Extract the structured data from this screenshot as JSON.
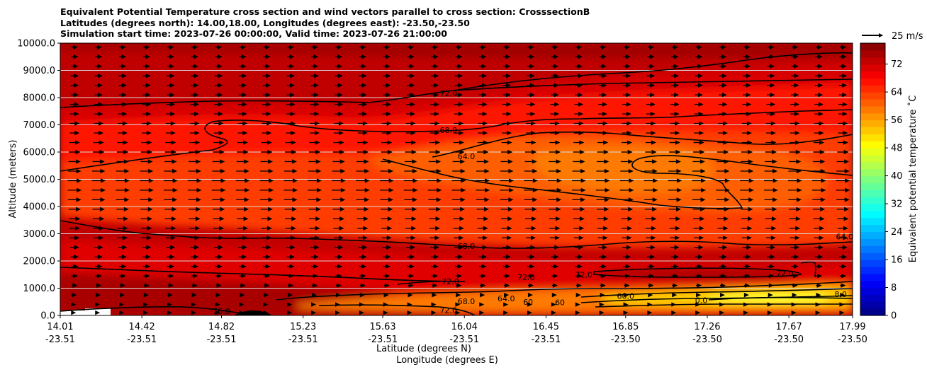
{
  "title": {
    "lines": [
      "Equivalent Potential Temperature cross section and wind vectors parallel to cross section: CrosssectionB",
      "Latitudes (degrees north): 14.00,18.00, Longitudes (degrees east): -23.50,-23.50",
      "Simulation start time: 2023-07-26 00:00:00, Valid time: 2023-07-26 21:00:00"
    ]
  },
  "quiver_key": {
    "label": "25 m/s",
    "value": 25
  },
  "colors": {
    "hot": [
      "#8b0000",
      "#a50000",
      "#c80000",
      "#e00000",
      "#ff1a00",
      "#ff3d00",
      "#ff5e00",
      "#ff7a00",
      "#ffa500",
      "#ffd000",
      "#ffff20"
    ],
    "jet_stops": [
      "#00007f",
      "#0000ff",
      "#007fff",
      "#00ffff",
      "#7fff7f",
      "#ffff00",
      "#ff7f00",
      "#ff0000",
      "#7f0000"
    ]
  },
  "chart_data": {
    "type": "heatmap",
    "variable": "Equivalent potential temperature",
    "xlabel": "Latitude (degrees N)",
    "xlabel2": "Longitude (degrees E)",
    "ylabel": "Altitude (meters)",
    "ylim": [
      0,
      10000
    ],
    "yticks": [
      "0.0",
      "1000.0",
      "2000.0",
      "3000.0",
      "4000.0",
      "5000.0",
      "6000.0",
      "7000.0",
      "8000.0",
      "9000.0",
      "10000.0"
    ],
    "ytick_values": [
      0,
      1000,
      2000,
      3000,
      4000,
      5000,
      6000,
      7000,
      8000,
      9000,
      10000
    ],
    "xlim": [
      14.01,
      17.99
    ],
    "xticks_lat": [
      "14.01",
      "14.42",
      "14.82",
      "15.23",
      "15.63",
      "16.04",
      "16.45",
      "16.85",
      "17.26",
      "17.67",
      "17.99"
    ],
    "xticks_lon": [
      "-23.51",
      "-23.51",
      "-23.51",
      "-23.51",
      "-23.51",
      "-23.51",
      "-23.51",
      "-23.50",
      "-23.50",
      "-23.50",
      "-23.50"
    ],
    "xtick_values": [
      14.01,
      14.42,
      14.82,
      15.23,
      15.63,
      16.04,
      16.45,
      16.85,
      17.26,
      17.67,
      17.99
    ],
    "colorbar": {
      "label": "Equivalent potential temperature ˚C",
      "ticks": [
        "0",
        "8",
        "16",
        "24",
        "32",
        "40",
        "48",
        "56",
        "64",
        "72"
      ],
      "tick_values": [
        0,
        8,
        16,
        24,
        32,
        40,
        48,
        56,
        64,
        72
      ],
      "range": [
        0,
        78
      ]
    },
    "contour_labels": [
      {
        "text": "72.0",
        "x": 15.96,
        "y": 8150
      },
      {
        "text": "68.0",
        "x": 15.96,
        "y": 6800
      },
      {
        "text": "64.0",
        "x": 16.05,
        "y": 5850
      },
      {
        "text": "68.0",
        "x": 16.05,
        "y": 2550
      },
      {
        "text": "72.0",
        "x": 15.97,
        "y": 1250
      },
      {
        "text": "68.0",
        "x": 16.05,
        "y": 520
      },
      {
        "text": "72.0",
        "x": 15.96,
        "y": 190
      },
      {
        "text": "76.0",
        "x": 14.82,
        "y": 150
      },
      {
        "text": "72.0",
        "x": 16.35,
        "y": 1400
      },
      {
        "text": "72.0",
        "x": 16.64,
        "y": 1500
      },
      {
        "text": "60.0",
        "x": 16.85,
        "y": 720
      },
      {
        "text": "72.0",
        "x": 17.65,
        "y": 1550
      },
      {
        "text": "64.0",
        "x": 17.95,
        "y": 2900
      },
      {
        "text": "64.0",
        "x": 16.25,
        "y": 620
      },
      {
        "text": "60",
        "x": 16.36,
        "y": 500
      },
      {
        "text": "60",
        "x": 16.52,
        "y": 480
      },
      {
        "text": "0.0",
        "x": 17.23,
        "y": 560
      },
      {
        "text": "8.0",
        "x": 17.93,
        "y": 780
      }
    ],
    "wind": {
      "columns_lat_range": [
        14.01,
        17.99
      ],
      "n_columns": 33,
      "rows_altitude": [
        9850,
        9500,
        9150,
        8800,
        8450,
        8100,
        7750,
        7400,
        7050,
        6700,
        6350,
        6000,
        5650,
        5300,
        4950,
        4600,
        4250,
        3900,
        3550,
        3200,
        2850,
        2500,
        2150,
        1800,
        1450,
        1100,
        750,
        400,
        100
      ],
      "speed_ms_by_row": [
        8,
        9,
        9,
        10,
        10,
        10,
        11,
        11,
        12,
        12,
        13,
        14,
        15,
        16,
        17,
        17,
        16,
        15,
        14,
        13,
        12,
        11,
        10,
        9,
        8,
        7,
        5,
        3,
        1
      ]
    }
  }
}
